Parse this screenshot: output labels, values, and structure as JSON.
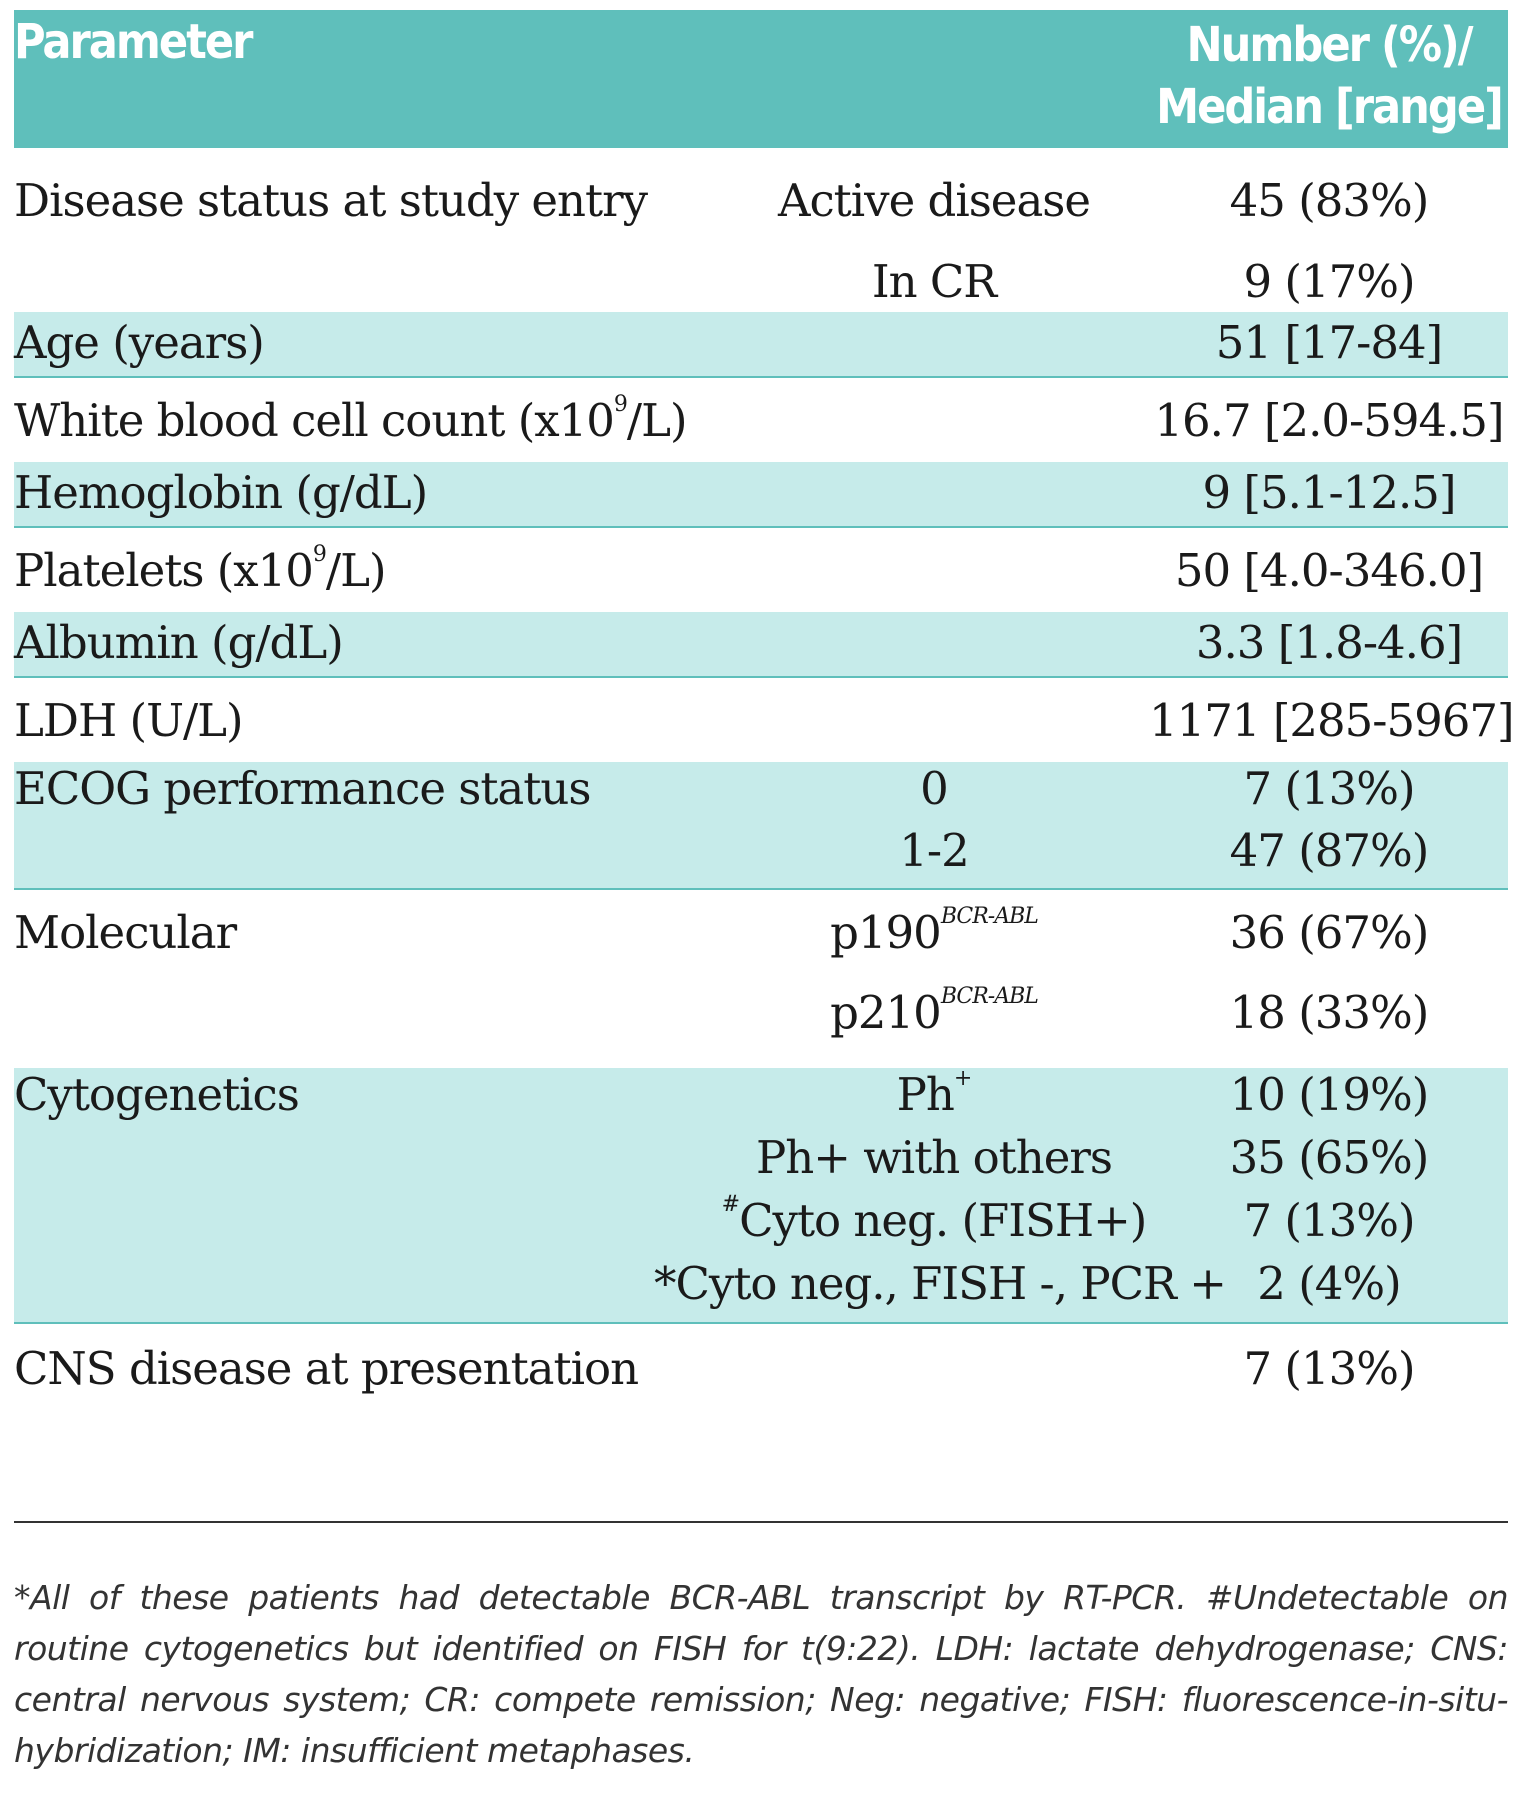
{
  "header": {
    "parameter": "Parameter",
    "value_line1": "Number (%)/",
    "value_line2": "Median [range]"
  },
  "rows": {
    "disease_status": {
      "parameter": "Disease status at study entry",
      "sub": [
        "Active disease",
        "In CR"
      ],
      "values": [
        "45 (83%)",
        "9 (17%)"
      ]
    },
    "age": {
      "parameter": "Age (years)",
      "value": "51 [17-84]"
    },
    "wbc": {
      "parameter_pre": "White blood cell count (x10",
      "parameter_sup": "9",
      "parameter_post": "/L)",
      "value": "16.7 [2.0-594.5]"
    },
    "hemoglobin": {
      "parameter": "Hemoglobin (g/dL)",
      "value": "9 [5.1-12.5]"
    },
    "platelets": {
      "parameter_pre": "Platelets (x10",
      "parameter_sup": "9",
      "parameter_post": "/L)",
      "value": "50 [4.0-346.0]"
    },
    "albumin": {
      "parameter": "Albumin (g/dL)",
      "value": "3.3 [1.8-4.6]"
    },
    "ldh": {
      "parameter": "LDH (U/L)",
      "value": "1171 [285-5967]"
    },
    "ecog": {
      "parameter": "ECOG performance status",
      "sub": [
        "0",
        "1-2"
      ],
      "values": [
        "7 (13%)",
        "47 (87%)"
      ]
    },
    "molecular": {
      "parameter": "Molecular",
      "sub_base": [
        "p190",
        "p210"
      ],
      "sub_sup": "BCR-ABL",
      "values": [
        "36 (67%)",
        "18 (33%)"
      ]
    },
    "cytogenetics": {
      "parameter": "Cytogenetics",
      "sub": [
        "Ph",
        "Ph+ with others",
        "Cyto neg. (FISH+)",
        "*Cyto neg., FISH -, PCR +"
      ],
      "ph_sup": "+",
      "hash_sup": "#",
      "values": [
        "10 (19%)",
        "35 (65%)",
        "7 (13%)",
        "2 (4%)"
      ]
    },
    "cns": {
      "parameter": "CNS disease at presentation",
      "value": "7 (13%)"
    }
  },
  "footnote": "*All of these patients had detectable BCR-ABL transcript by RT-PCR. #Undetectable on routine cytogenetics but identified on FISH for t(9:22). LDH: lactate dehydrogenase; CNS: central nervous system; CR: compete remission; Neg: negative; FISH: fluorescence-in-situ-hybridization; IM: insufficient metaphases."
}
